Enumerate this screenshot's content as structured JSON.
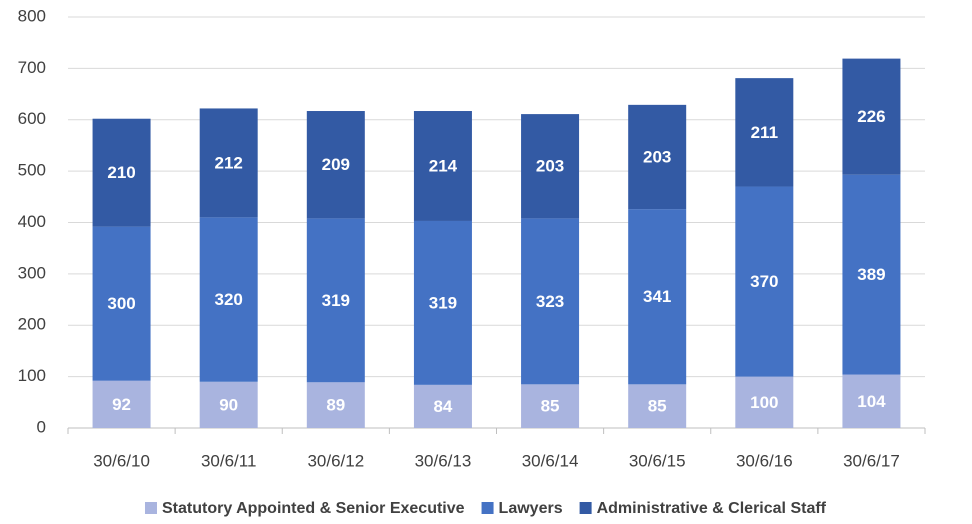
{
  "chart_data": {
    "type": "stacked_bar",
    "categories": [
      "30/6/10",
      "30/6/11",
      "30/6/12",
      "30/6/13",
      "30/6/14",
      "30/6/15",
      "30/6/16",
      "30/6/17"
    ],
    "series": [
      {
        "name": "Statutory Appointed & Senior Executive",
        "color": "#a9b4df",
        "values": [
          92,
          90,
          89,
          84,
          85,
          85,
          100,
          104
        ]
      },
      {
        "name": "Lawyers",
        "color": "#4472c4",
        "values": [
          300,
          320,
          319,
          319,
          323,
          341,
          370,
          389
        ]
      },
      {
        "name": "Administrative & Clerical Staff",
        "color": "#335aa4",
        "values": [
          210,
          212,
          209,
          214,
          203,
          203,
          211,
          226
        ]
      }
    ],
    "ylim": [
      0,
      800
    ],
    "yticks": [
      0,
      100,
      200,
      300,
      400,
      500,
      600,
      700,
      800
    ],
    "grid": true,
    "legend": "bottom"
  }
}
